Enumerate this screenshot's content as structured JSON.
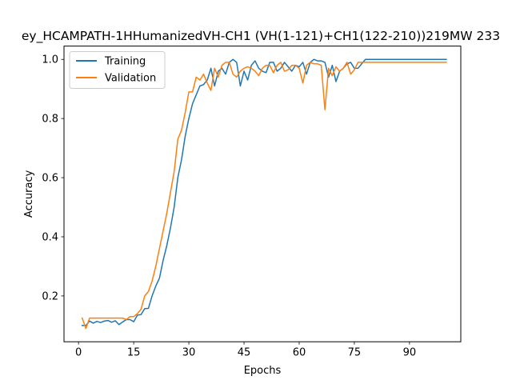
{
  "chart_data": {
    "type": "line",
    "title": "ey_HCAMPATH-1HHumanizedVH-CH1 (VH(1-121)+CH1(122-210))219MW 233",
    "xlabel": "Epochs",
    "ylabel": "Accuracy",
    "xlim": [
      -3.95,
      103.95
    ],
    "ylim": [
      0.045,
      1.045
    ],
    "xticks": [
      0,
      15,
      30,
      45,
      60,
      75,
      90
    ],
    "yticks": [
      0.2,
      0.4,
      0.6,
      0.8,
      1.0
    ],
    "yticklabels": [
      "0.2",
      "0.4",
      "0.6",
      "0.8",
      "1.0"
    ],
    "grid": false,
    "legend_position": "top-left",
    "series": [
      {
        "name": "Training",
        "color": "#1f77b4",
        "x": [
          1,
          2,
          3,
          4,
          5,
          6,
          7,
          8,
          9,
          10,
          11,
          12,
          13,
          14,
          15,
          16,
          17,
          18,
          19,
          20,
          21,
          22,
          23,
          24,
          25,
          26,
          27,
          28,
          29,
          30,
          31,
          32,
          33,
          34,
          35,
          36,
          37,
          38,
          39,
          40,
          41,
          42,
          43,
          44,
          45,
          46,
          47,
          48,
          49,
          50,
          51,
          52,
          53,
          54,
          55,
          56,
          57,
          58,
          59,
          60,
          61,
          62,
          63,
          64,
          65,
          66,
          67,
          68,
          69,
          70,
          71,
          72,
          73,
          74,
          75,
          76,
          77,
          78,
          79,
          80,
          81,
          82,
          83,
          84,
          85,
          86,
          87,
          88,
          89,
          90,
          91,
          92,
          93,
          94,
          95,
          96,
          97,
          98,
          99,
          100
        ],
        "values": [
          0.1,
          0.1,
          0.115,
          0.108,
          0.114,
          0.11,
          0.115,
          0.117,
          0.111,
          0.116,
          0.103,
          0.112,
          0.12,
          0.12,
          0.113,
          0.135,
          0.137,
          0.157,
          0.158,
          0.2,
          0.233,
          0.26,
          0.32,
          0.37,
          0.43,
          0.5,
          0.6,
          0.66,
          0.74,
          0.8,
          0.85,
          0.88,
          0.91,
          0.915,
          0.93,
          0.97,
          0.91,
          0.96,
          0.97,
          0.95,
          0.99,
          1.0,
          0.99,
          0.91,
          0.96,
          0.93,
          0.98,
          0.995,
          0.97,
          0.96,
          0.955,
          0.99,
          0.99,
          0.96,
          0.97,
          0.99,
          0.975,
          0.96,
          0.98,
          0.975,
          0.99,
          0.95,
          0.99,
          1.0,
          0.995,
          0.995,
          0.99,
          0.94,
          0.98,
          0.925,
          0.96,
          0.97,
          0.985,
          0.99,
          0.97,
          0.97,
          0.985,
          1.0,
          1.0,
          1.0,
          1.0,
          1.0,
          1.0,
          1.0,
          1.0,
          1.0,
          1.0,
          1.0,
          1.0,
          1.0,
          1.0,
          1.0,
          1.0,
          1.0,
          1.0,
          1.0,
          1.0,
          1.0,
          1.0,
          1.0
        ]
      },
      {
        "name": "Validation",
        "color": "#ff7f0e",
        "x": [
          1,
          2,
          3,
          4,
          5,
          6,
          7,
          8,
          9,
          10,
          11,
          12,
          13,
          14,
          15,
          16,
          17,
          18,
          19,
          20,
          21,
          22,
          23,
          24,
          25,
          26,
          27,
          28,
          29,
          30,
          31,
          32,
          33,
          34,
          35,
          36,
          37,
          38,
          39,
          40,
          41,
          42,
          43,
          44,
          45,
          46,
          47,
          48,
          49,
          50,
          51,
          52,
          53,
          54,
          55,
          56,
          57,
          58,
          59,
          60,
          61,
          62,
          63,
          64,
          65,
          66,
          67,
          68,
          69,
          70,
          71,
          72,
          73,
          74,
          75,
          76,
          77,
          78,
          79,
          80,
          81,
          82,
          83,
          84,
          85,
          86,
          87,
          88,
          89,
          90,
          91,
          92,
          93,
          94,
          95,
          96,
          97,
          98,
          99,
          100
        ],
        "values": [
          0.125,
          0.09,
          0.125,
          0.125,
          0.125,
          0.125,
          0.125,
          0.125,
          0.125,
          0.125,
          0.125,
          0.125,
          0.12,
          0.13,
          0.13,
          0.14,
          0.155,
          0.2,
          0.215,
          0.25,
          0.3,
          0.36,
          0.42,
          0.48,
          0.55,
          0.62,
          0.73,
          0.76,
          0.82,
          0.89,
          0.89,
          0.94,
          0.93,
          0.95,
          0.92,
          0.895,
          0.97,
          0.94,
          0.98,
          0.99,
          0.99,
          0.95,
          0.94,
          0.96,
          0.97,
          0.975,
          0.97,
          0.96,
          0.945,
          0.97,
          0.98,
          0.98,
          0.955,
          0.98,
          0.99,
          0.96,
          0.965,
          0.98,
          0.98,
          0.97,
          0.92,
          0.98,
          0.99,
          0.985,
          0.985,
          0.98,
          0.83,
          0.97,
          0.945,
          0.975,
          0.96,
          0.97,
          0.99,
          0.95,
          0.965,
          0.99,
          0.99,
          0.99,
          0.99,
          0.99,
          0.99,
          0.99,
          0.99,
          0.99,
          0.99,
          0.99,
          0.99,
          0.99,
          0.99,
          0.99,
          0.99,
          0.99,
          0.99,
          0.99,
          0.99,
          0.99,
          0.99,
          0.99,
          0.99,
          0.99
        ]
      }
    ]
  }
}
